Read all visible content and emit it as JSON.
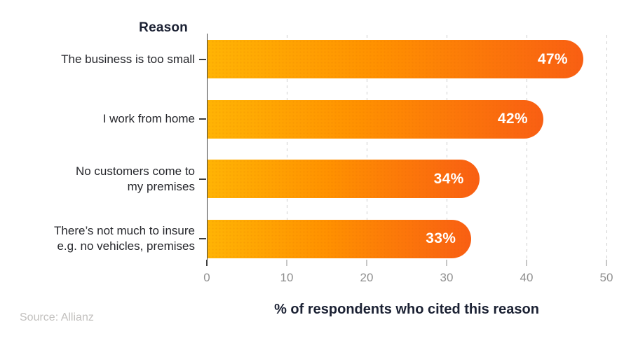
{
  "chart_data": {
    "type": "bar",
    "orientation": "horizontal",
    "title": "Reason",
    "xlabel": "% of respondents who cited this reason",
    "categories": [
      "The business is too small",
      "I work from home",
      "No customers come to my premises",
      "There’s not much to insure e.g. no vehicles, premises"
    ],
    "category_display": [
      "The business is too small",
      "I work from home",
      "No customers come to\nmy premises",
      "There’s not much to insure\ne.g. no vehicles, premises"
    ],
    "values": [
      47,
      42,
      34,
      33
    ],
    "value_labels": [
      "47%",
      "42%",
      "34%",
      "33%"
    ],
    "xlim": [
      0,
      50
    ],
    "xticks": [
      0,
      10,
      20,
      30,
      40,
      50
    ],
    "grid": {
      "axis": "x",
      "style": "dashed"
    },
    "legend": "none",
    "colors": {
      "bar_gradient_start": "#FFB404",
      "bar_gradient_mid": "#FF9100",
      "bar_gradient_end": "#F95F13",
      "value_label": "#FFFFFF",
      "title_text": "#1B2133",
      "category_text": "#26272C",
      "tick_text": "#8F8F8F",
      "gridline": "#CFCFCF",
      "axis_line": "#3F3F3F",
      "source_text": "#C2C0BE"
    }
  },
  "source_note": "Source: Allianz"
}
